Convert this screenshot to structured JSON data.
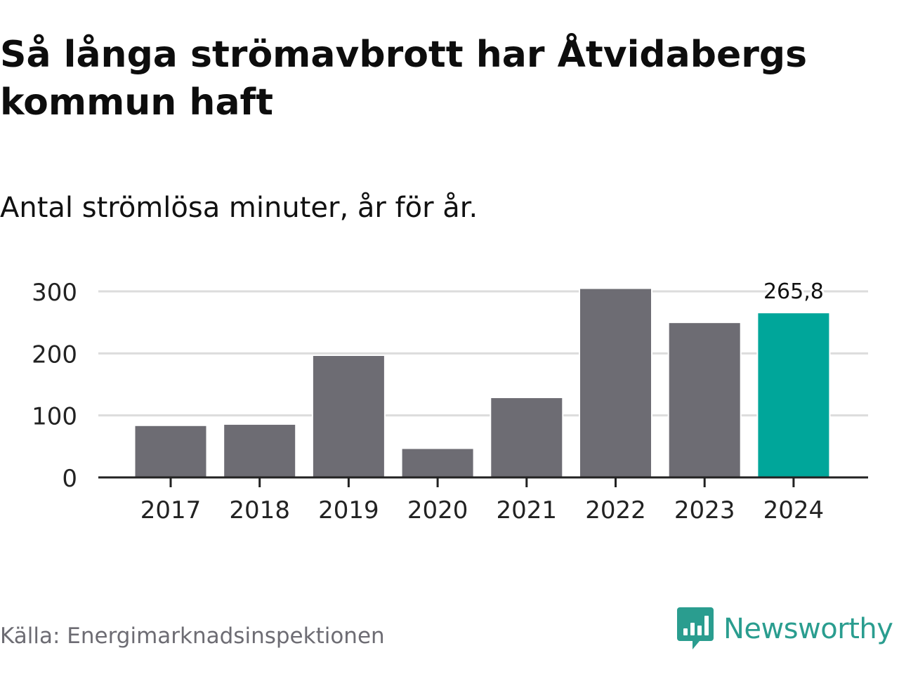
{
  "title": "Så långa strömavbrott har Åtvidabergs kommun haft",
  "subtitle": "Antal strömlösa minuter, år för år.",
  "source": "Källa: Energimarknadsinspektionen",
  "brand": {
    "name": "Newsworthy",
    "color": "#2a9d8f",
    "icon": "newsworthy-logo-icon"
  },
  "colors": {
    "bar": "#6d6c73",
    "highlight": "#00a69a",
    "grid": "#dcdcdc",
    "axis": "#222222"
  },
  "chart_data": {
    "type": "bar",
    "title": "Så långa strömavbrott har Åtvidabergs kommun haft",
    "subtitle": "Antal strömlösa minuter, år för år.",
    "xlabel": "",
    "ylabel": "",
    "categories": [
      "2017",
      "2018",
      "2019",
      "2020",
      "2021",
      "2022",
      "2023",
      "2024"
    ],
    "values": [
      84,
      86,
      197,
      47,
      129,
      305,
      250,
      265.8
    ],
    "ylim": [
      0,
      300
    ],
    "yticks": [
      "0",
      "100",
      "200",
      "300"
    ],
    "highlight_index": 7,
    "data_labels": [
      {
        "index": 7,
        "text": "265,8"
      }
    ],
    "grid": true,
    "legend": "none"
  }
}
